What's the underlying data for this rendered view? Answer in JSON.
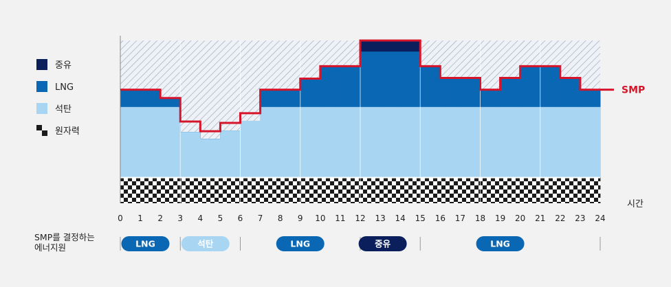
{
  "legend": [
    {
      "key": "oil",
      "label": "중유",
      "color": "#0a1f5c"
    },
    {
      "key": "lng",
      "label": "LNG",
      "color": "#0a67b4"
    },
    {
      "key": "coal",
      "label": "석탄",
      "color": "#a7d5f2"
    },
    {
      "key": "nuclear",
      "label": "원자력",
      "pattern": "checker"
    }
  ],
  "x_axis": {
    "unit_label": "시간",
    "ticks": [
      "0",
      "1",
      "2",
      "3",
      "4",
      "5",
      "6",
      "7",
      "8",
      "9",
      "10",
      "11",
      "12",
      "13",
      "14",
      "15",
      "16",
      "17",
      "18",
      "19",
      "20",
      "21",
      "22",
      "23",
      "24"
    ]
  },
  "smp_label": "SMP",
  "bottom_caption": [
    "SMP를 결정하는",
    "에너지원"
  ],
  "marginal_sources": [
    {
      "label": "LNG",
      "from_hour": 0,
      "to_hour": 3,
      "color": "#0a67b4"
    },
    {
      "label": "석탄",
      "from_hour": 3,
      "to_hour": 6,
      "color": "#a7d5f2"
    },
    {
      "label": "LNG",
      "from_hour": 6,
      "to_hour": 12,
      "color": "#0a67b4"
    },
    {
      "label": "중유",
      "from_hour": 12,
      "to_hour": 15,
      "color": "#0a1f5c"
    },
    {
      "label": "LNG",
      "from_hour": 15,
      "to_hour": 24,
      "color": "#0a67b4"
    }
  ],
  "chart_data": {
    "type": "area",
    "x": [
      0,
      1,
      2,
      3,
      4,
      5,
      6,
      7,
      8,
      9,
      10,
      11,
      12,
      13,
      14,
      15,
      16,
      17,
      18,
      19,
      20,
      21,
      22,
      23
    ],
    "ylim": [
      0,
      235
    ],
    "series": [
      {
        "name": "원자력",
        "values": [
          37,
          37,
          37,
          37,
          37,
          37,
          37,
          37,
          37,
          37,
          37,
          37,
          37,
          37,
          37,
          37,
          37,
          37,
          37,
          37,
          37,
          37,
          37,
          37
        ]
      },
      {
        "name": "석탄",
        "values": [
          139,
          139,
          139,
          103,
          93,
          105,
          119,
          139,
          139,
          139,
          139,
          139,
          139,
          139,
          139,
          139,
          139,
          139,
          139,
          139,
          139,
          139,
          139,
          139
        ]
      },
      {
        "name": "LNG",
        "values": [
          164,
          164,
          152,
          103,
          93,
          105,
          119,
          164,
          164,
          180,
          198,
          198,
          219,
          219,
          219,
          198,
          181,
          181,
          164,
          181,
          198,
          198,
          181,
          164
        ]
      },
      {
        "name": "중유",
        "values": [
          164,
          164,
          152,
          103,
          93,
          105,
          119,
          164,
          164,
          180,
          198,
          198,
          235,
          235,
          235,
          198,
          181,
          181,
          164,
          181,
          198,
          198,
          181,
          164
        ]
      }
    ],
    "smp": [
      164,
      164,
      152,
      118,
      104,
      116,
      130,
      164,
      164,
      180,
      198,
      198,
      235,
      235,
      235,
      198,
      181,
      181,
      164,
      181,
      198,
      198,
      181,
      164
    ],
    "capacity": 235
  }
}
